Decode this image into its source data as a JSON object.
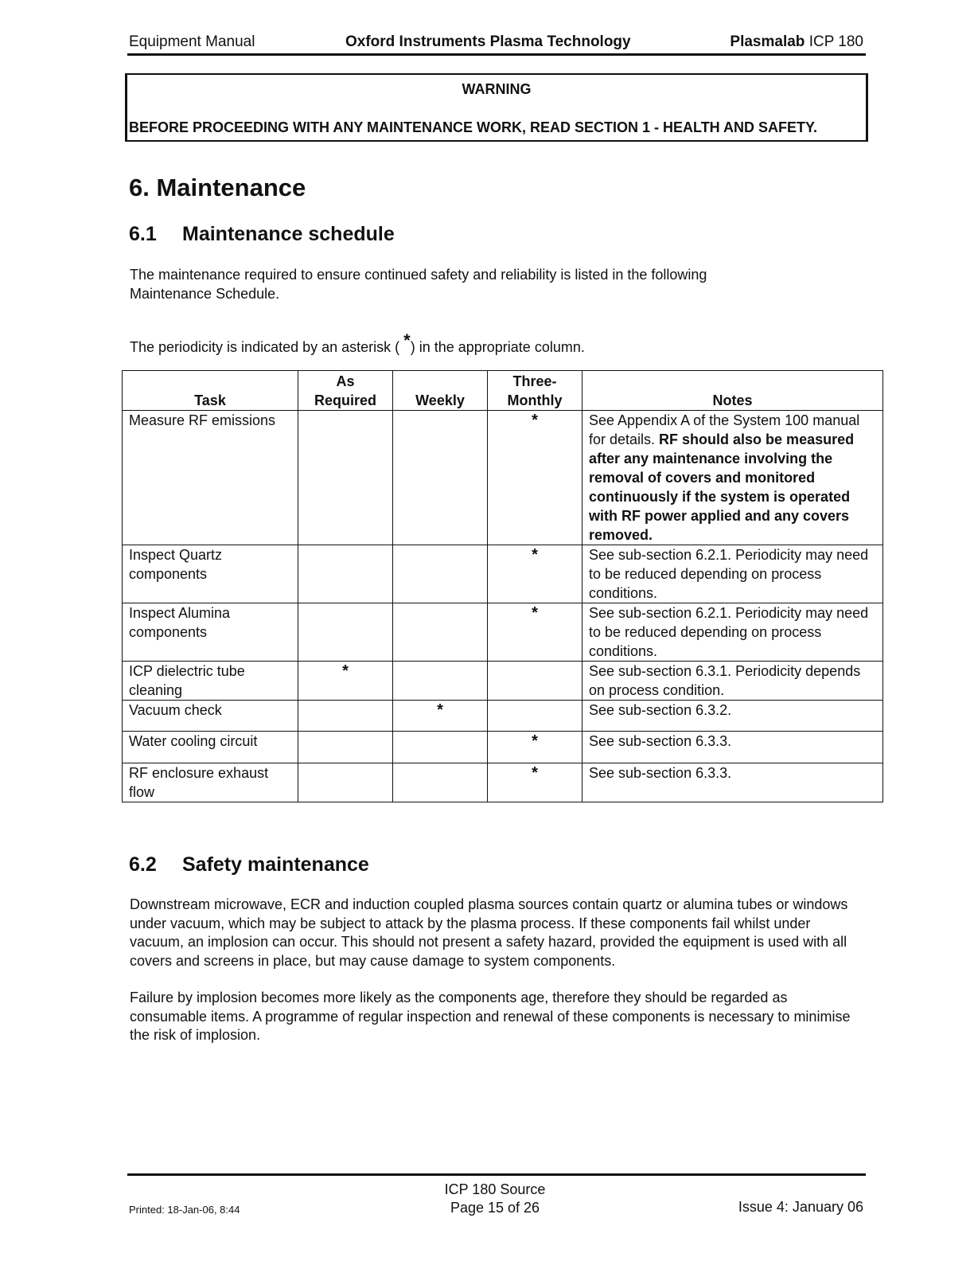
{
  "header": {
    "left": "Equipment Manual",
    "center": "Oxford Instruments Plasma Technology",
    "right_bold": "Plasmalab",
    "right": "ICP 180"
  },
  "warning": {
    "title": "WARNING",
    "text": "BEFORE PROCEEDING WITH ANY MAINTENANCE WORK, READ SECTION 1 - HEALTH AND SAFETY."
  },
  "chapter_title": "6. Maintenance",
  "section_1": {
    "number": "6.1",
    "title": "Maintenance schedule",
    "para1": "The maintenance required to ensure continued safety and reliability is listed in the following Maintenance Schedule.",
    "para2_before": "The periodicity is indicated by an asterisk ( ",
    "para2_mark": "*",
    "para2_after": ") in the appropriate column."
  },
  "table": {
    "headers": [
      "Task",
      "As Required",
      "Weekly",
      "Three-Monthly",
      "Notes"
    ],
    "rows": [
      {
        "task": "Measure RF emissions",
        "as_required": "",
        "weekly": "",
        "three_monthly": "*",
        "notes": "See Appendix A of the System 100 manual for details. ",
        "notes_bold": "RF should also be measured after any maintenance involving the removal of covers and monitored continuously if the system is operated with RF power applied and any covers removed."
      },
      {
        "task": "Inspect Quartz components",
        "as_required": "",
        "weekly": "",
        "three_monthly": "*",
        "notes": "See sub-section 6.2.1. Periodicity may need to be reduced depending on process conditions.",
        "notes_bold": ""
      },
      {
        "task": "Inspect Alumina components",
        "as_required": "",
        "weekly": "",
        "three_monthly": "*",
        "notes": "See sub-section 6.2.1. Periodicity may need to be reduced depending on process conditions.",
        "notes_bold": ""
      },
      {
        "task": "ICP dielectric tube cleaning",
        "as_required": "*",
        "weekly": "",
        "three_monthly": "",
        "notes": "See sub-section 6.3.1. Periodicity depends on process condition.",
        "notes_bold": ""
      },
      {
        "task": "Vacuum check",
        "as_required": "",
        "weekly": "*",
        "three_monthly": "",
        "notes": "See sub-section 6.3.2.",
        "notes_bold": ""
      },
      {
        "task": "Water cooling circuit",
        "as_required": "",
        "weekly": "",
        "three_monthly": "*",
        "notes": "See sub-section 6.3.3.",
        "notes_bold": ""
      },
      {
        "task": "RF enclosure exhaust flow",
        "as_required": "",
        "weekly": "",
        "three_monthly": "*",
        "notes": "See sub-section 6.3.3.",
        "notes_bold": ""
      }
    ]
  },
  "section_2": {
    "number": "6.2",
    "title": "Safety maintenance",
    "para1": "Downstream microwave, ECR and induction coupled plasma sources contain quartz or alumina tubes or windows under vacuum, which may be subject to attack by the plasma process. If these components fail whilst under vacuum, an implosion can occur. This should not present a safety hazard, provided the equipment is used with all covers and screens in place, but may cause damage to system components.",
    "para2": "Failure by implosion becomes more likely as the components age, therefore they should be regarded as consumable items. A programme of regular inspection and renewal of these components is necessary to minimise the risk of implosion."
  },
  "footer": {
    "printed": "Printed: 18-Jan-06, 8:44",
    "center_line1": "ICP 180 Source",
    "center_line2": "Page 15 of 26",
    "issue": "Issue 4: January 06"
  }
}
